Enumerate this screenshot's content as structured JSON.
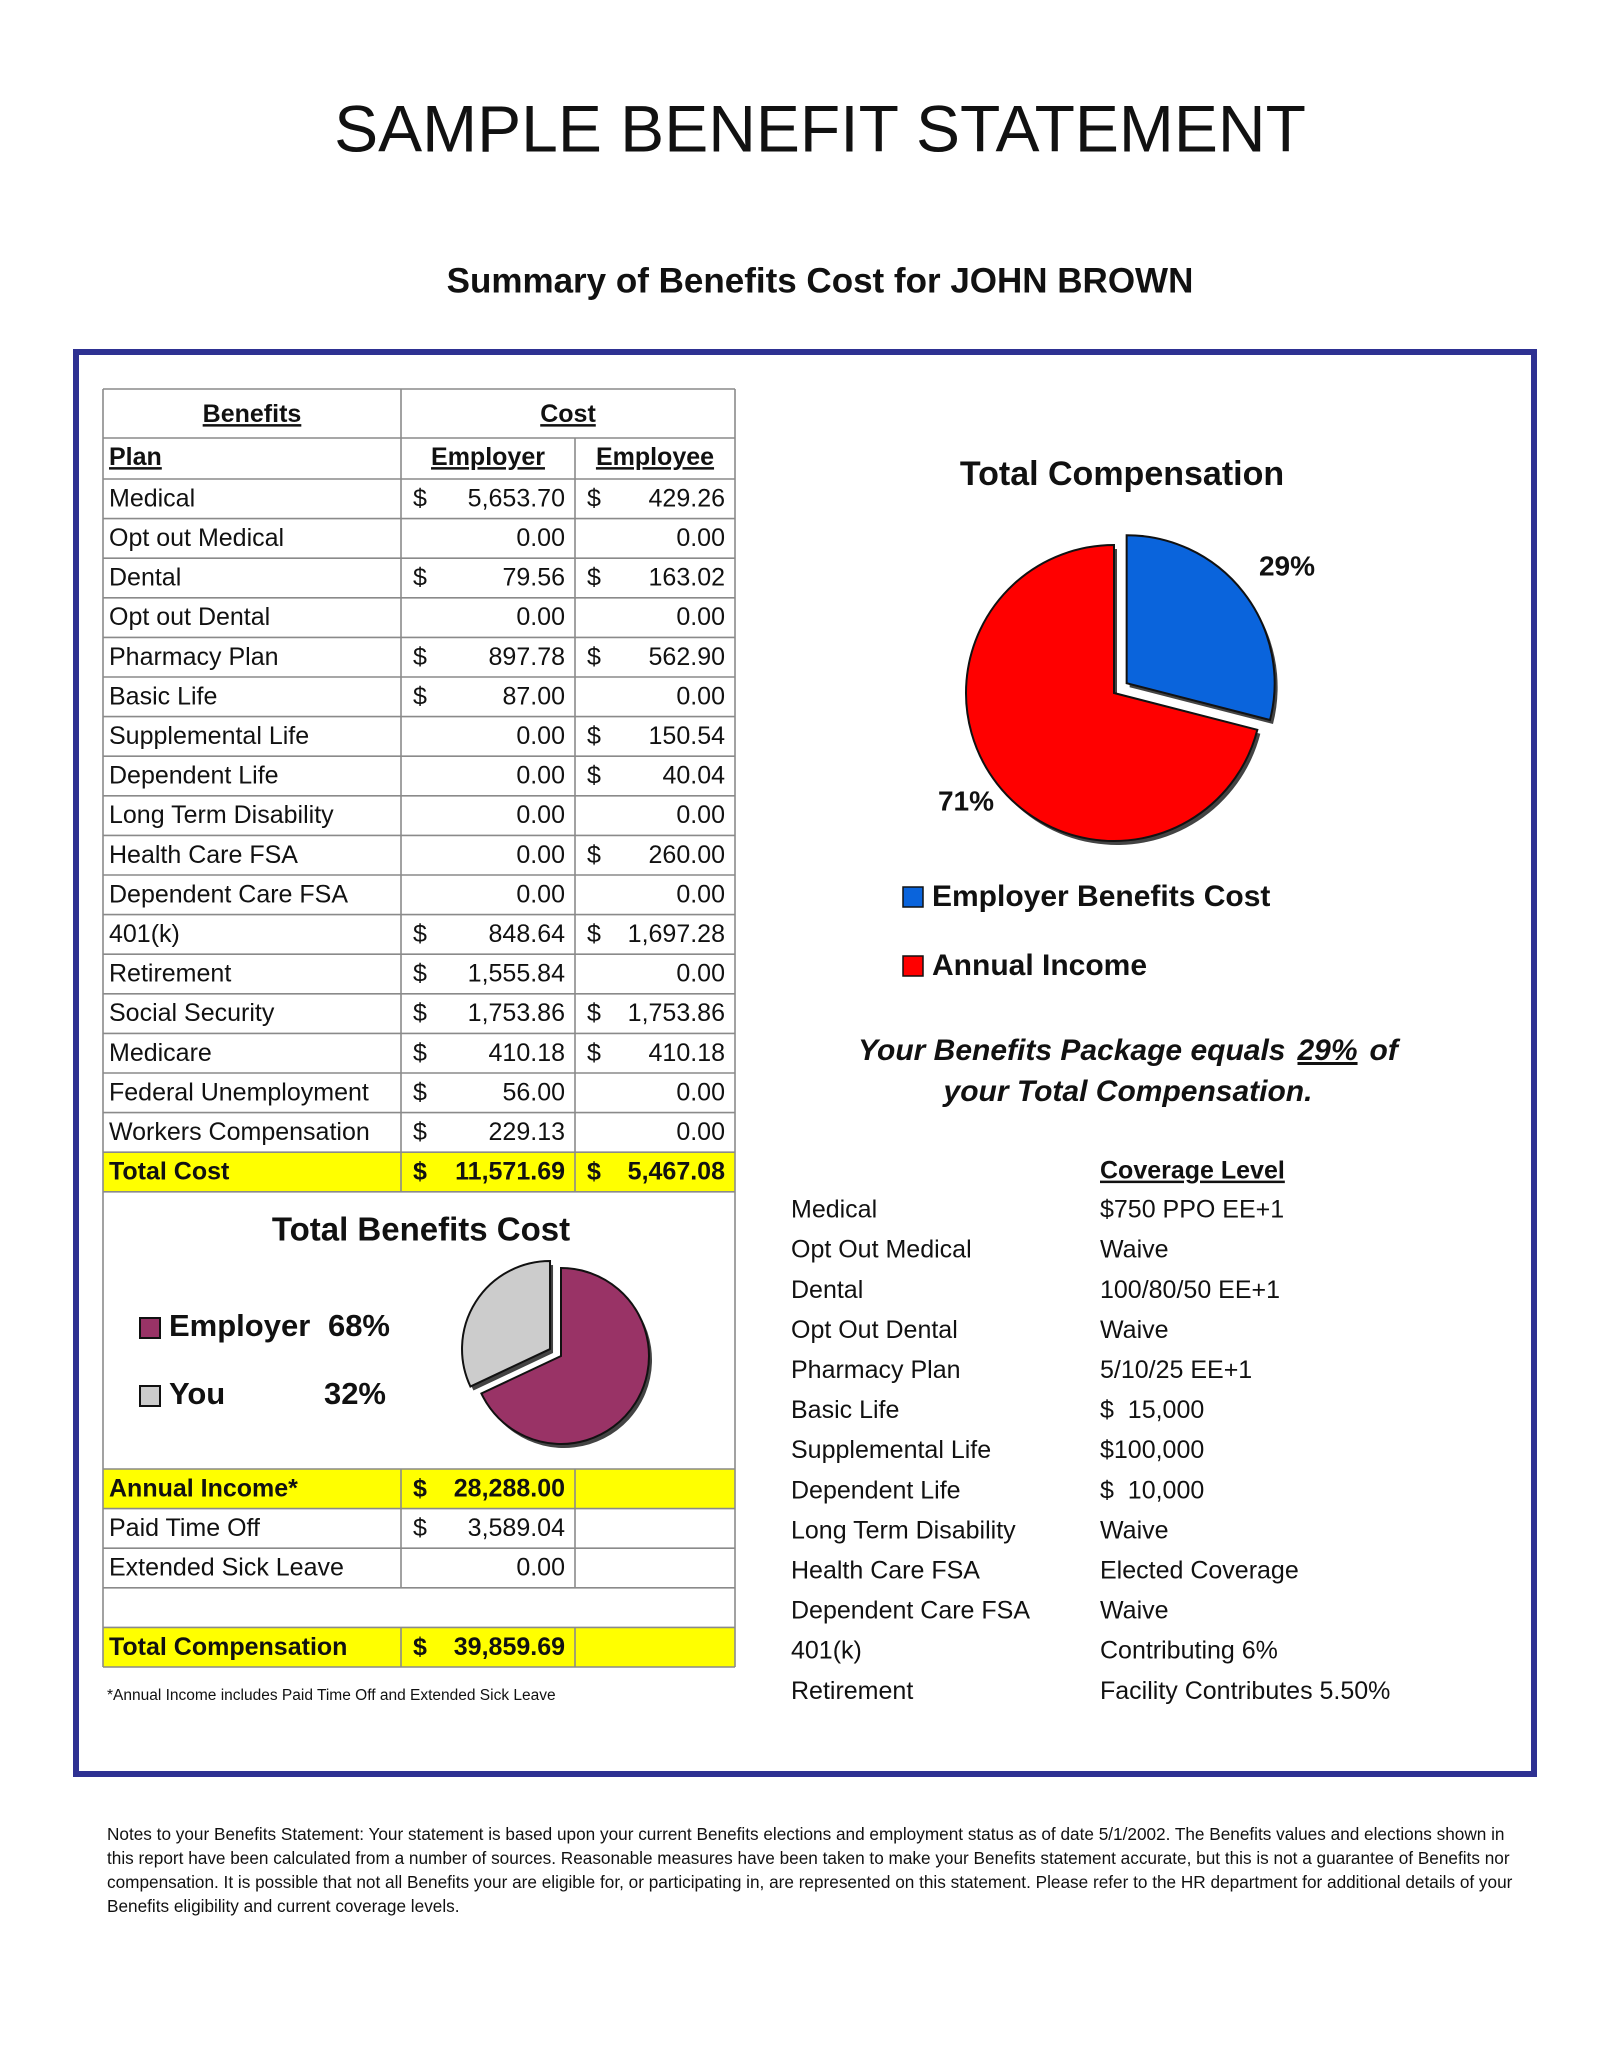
{
  "header": {
    "title": "SAMPLE BENEFIT STATEMENT",
    "subtitle": "Summary of Benefits Cost for JOHN BROWN"
  },
  "benefits_table": {
    "headers": {
      "group1": "Benefits",
      "group2": "Cost",
      "plan": "Plan",
      "employer": "Employer",
      "employee": "Employee"
    },
    "rows": [
      {
        "plan": "Medical",
        "employer": [
          "$",
          "5,653.70"
        ],
        "employee": [
          "$",
          "429.26"
        ]
      },
      {
        "plan": "Opt out Medical",
        "employer": [
          "0.00"
        ],
        "employee": [
          "0.00"
        ]
      },
      {
        "plan": "Dental",
        "employer": [
          "$",
          "79.56"
        ],
        "employee": [
          "$",
          "163.02"
        ]
      },
      {
        "plan": "Opt out Dental",
        "employer": [
          "0.00"
        ],
        "employee": [
          "0.00"
        ]
      },
      {
        "plan": "Pharmacy Plan",
        "employer": [
          "$",
          "897.78"
        ],
        "employee": [
          "$",
          "562.90"
        ]
      },
      {
        "plan": "Basic Life",
        "employer": [
          "$",
          "87.00"
        ],
        "employee": [
          "0.00"
        ]
      },
      {
        "plan": "Supplemental Life",
        "employer": [
          "0.00"
        ],
        "employee": [
          "$",
          "150.54"
        ]
      },
      {
        "plan": "Dependent Life",
        "employer": [
          "0.00"
        ],
        "employee": [
          "$",
          "40.04"
        ]
      },
      {
        "plan": "Long Term Disability",
        "employer": [
          "0.00"
        ],
        "employee": [
          "0.00"
        ]
      },
      {
        "plan": "Health Care FSA",
        "employer": [
          "0.00"
        ],
        "employee": [
          "$",
          "260.00"
        ]
      },
      {
        "plan": "Dependent Care FSA",
        "employer": [
          "0.00"
        ],
        "employee": [
          "0.00"
        ]
      },
      {
        "plan": "401(k)",
        "employer": [
          "$",
          "848.64"
        ],
        "employee": [
          "$",
          "1,697.28"
        ]
      },
      {
        "plan": "Retirement",
        "employer": [
          "$",
          "1,555.84"
        ],
        "employee": [
          "0.00"
        ]
      },
      {
        "plan": "Social Security",
        "employer": [
          "$",
          "1,753.86"
        ],
        "employee": [
          "$",
          "1,753.86"
        ]
      },
      {
        "plan": "Medicare",
        "employer": [
          "$",
          "410.18"
        ],
        "employee": [
          "$",
          "410.18"
        ]
      },
      {
        "plan": "Federal Unemployment",
        "employer": [
          "$",
          "56.00"
        ],
        "employee": [
          "0.00"
        ]
      },
      {
        "plan": "Workers Compensation",
        "employer": [
          "$",
          "229.13"
        ],
        "employee": [
          "0.00"
        ]
      }
    ],
    "total": {
      "plan": "Total Cost",
      "employer": [
        "$",
        "11,571.69"
      ],
      "employee": [
        "$",
        "5,467.08"
      ]
    }
  },
  "compensation_table": {
    "rows": [
      {
        "plan": "Annual Income*",
        "amount": [
          "$",
          "28,288.00"
        ]
      },
      {
        "plan": "Paid Time Off",
        "amount": [
          "$",
          "3,589.04"
        ]
      },
      {
        "plan": "Extended Sick Leave",
        "amount": [
          "0.00"
        ]
      }
    ],
    "total": {
      "plan": "Total Compensation",
      "amount": [
        "$",
        "39,859.69"
      ]
    },
    "footnote": "*Annual Income includes Paid Time Off and Extended Sick Leave"
  },
  "chart_data": [
    {
      "type": "pie",
      "title": "Total Compensation",
      "categories": [
        "Employer Benefits Cost",
        "Annual Income"
      ],
      "values": [
        29,
        71
      ],
      "value_labels": [
        "29%",
        "71%"
      ],
      "colors": [
        "#0a64dc",
        "#ff0000"
      ]
    },
    {
      "type": "pie",
      "title": "Total Benefits Cost",
      "categories": [
        "Employer",
        "You"
      ],
      "values": [
        68,
        32
      ],
      "value_labels": [
        "68%",
        "32%"
      ],
      "colors": [
        "#993366",
        "#cccccc"
      ]
    }
  ],
  "package_statement": {
    "before": "Your Benefits Package equals",
    "highlight": "29%",
    "after": "of",
    "line2": "your Total Compensation."
  },
  "coverage": {
    "heading": "Coverage Level",
    "rows": [
      [
        "Medical",
        "$750 PPO EE+1"
      ],
      [
        "Opt Out Medical",
        "Waive"
      ],
      [
        "Dental",
        "100/80/50 EE+1"
      ],
      [
        "Opt Out Dental",
        "Waive"
      ],
      [
        "Pharmacy Plan",
        "5/10/25 EE+1"
      ],
      [
        "Basic Life",
        "$  15,000"
      ],
      [
        "Supplemental Life",
        "$100,000"
      ],
      [
        "Dependent Life",
        "$  10,000"
      ],
      [
        "Long Term Disability",
        "Waive"
      ],
      [
        "Health Care FSA",
        "Elected Coverage"
      ],
      [
        "Dependent Care FSA",
        "Waive"
      ],
      [
        "401(k)",
        "Contributing 6%"
      ],
      [
        "Retirement",
        "Facility Contributes 5.50%"
      ]
    ]
  },
  "notes": "Notes to your Benefits Statement:  Your statement is based upon your current Benefits elections and employment status as of date 5/1/2002.  The Benefits values and elections shown in this report have been calculated from a number of sources. Reasonable measures have been taken to make your Benefits statement accurate, but this is not a guarantee of Benefits nor compensation.  It is possible that not all Benefits your are eligible for, or participating in, are represented on this statement. Please refer to the HR department for additional details of your Benefits eligibility and current coverage levels."
}
